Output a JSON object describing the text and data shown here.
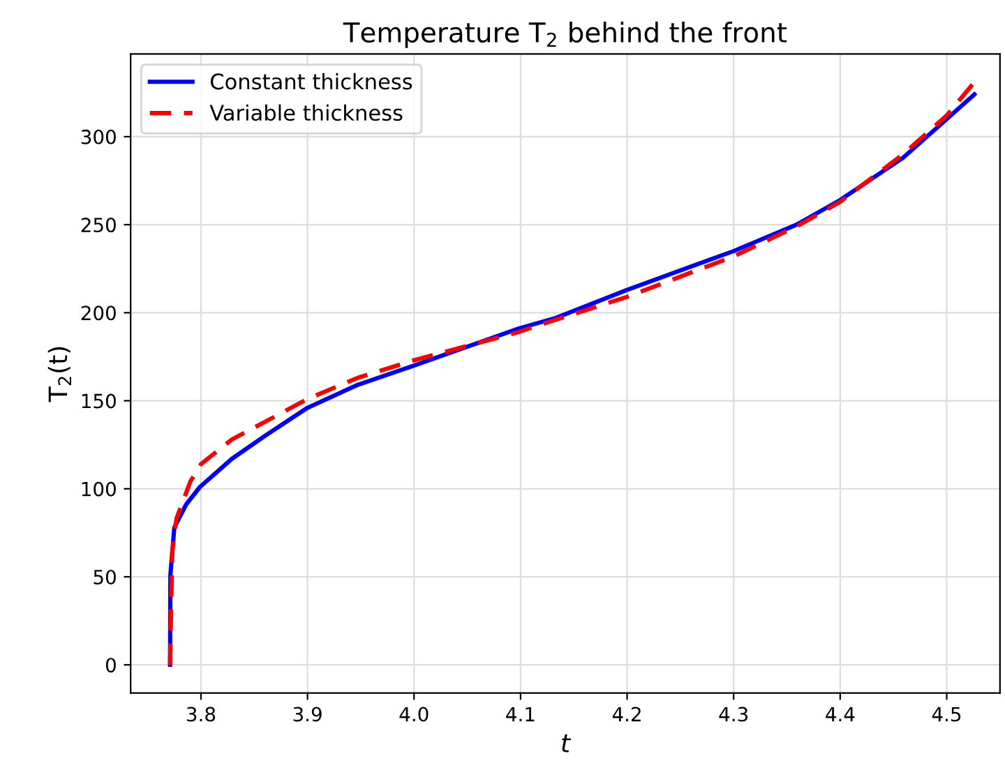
{
  "chart_data": {
    "type": "line",
    "title": "Temperature T$_{2}$ behind the front",
    "xlabel": "t",
    "ylabel": "T$_{2}$(t)",
    "xlim": [
      3.734,
      4.55
    ],
    "ylim": [
      -16,
      347
    ],
    "xticks": [
      3.8,
      3.9,
      {
        "value": 4.0,
        "label": "4.0"
      },
      4.1,
      4.2,
      4.3,
      4.4,
      4.5
    ],
    "yticks": [
      0,
      50,
      100,
      150,
      200,
      250,
      300
    ],
    "grid": true,
    "legend": "top left",
    "series": [
      {
        "name": "Constant thickness",
        "color": "#0000ff",
        "line_style": "solid",
        "x": [
          3.771,
          3.7713,
          3.775,
          3.786,
          3.799,
          3.829,
          3.86,
          3.9,
          3.947,
          4.0,
          4.098,
          4.133,
          4.2,
          4.3,
          4.359,
          4.4,
          4.459,
          4.5,
          4.526
        ],
        "values": [
          0,
          51,
          78,
          91,
          101,
          117,
          130,
          146,
          159,
          170,
          191,
          197,
          213,
          235,
          250,
          264,
          288,
          310,
          324
        ]
      },
      {
        "name": "Variable thickness",
        "color": "#ff0000",
        "line_style": "dashed",
        "x": [
          3.771,
          3.773,
          3.777,
          3.79,
          3.8,
          3.829,
          3.86,
          3.9,
          3.947,
          4.0,
          4.098,
          4.133,
          4.2,
          4.3,
          4.359,
          4.4,
          4.459,
          4.5,
          4.526
        ],
        "values": [
          0,
          64,
          83,
          104,
          114,
          128,
          138,
          151,
          163,
          173,
          189,
          196,
          209,
          232,
          249,
          263,
          290,
          312,
          331
        ]
      }
    ]
  }
}
